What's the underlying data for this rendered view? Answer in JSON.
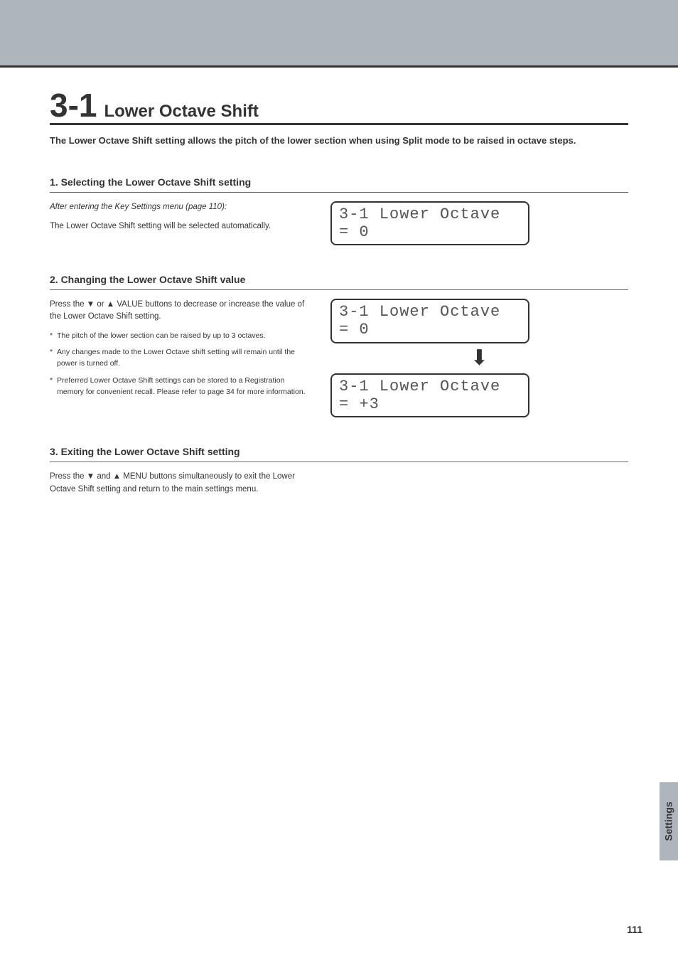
{
  "header": {
    "band_color": "#aeb5bc",
    "rule_color": "#333333"
  },
  "title": {
    "number": "3-1",
    "text": "Lower Octave Shift"
  },
  "intro": "The Lower Octave Shift setting allows the pitch of the lower section when using Split mode to be raised in octave steps.",
  "section1": {
    "heading": "1. Selecting the Lower Octave Shift setting",
    "line1": "After entering the Key Settings menu (page 110):",
    "line2": "The Lower Octave Shift setting will be selected automatically.",
    "lcd": "3-1 Lower Octave\n= 0"
  },
  "section2": {
    "heading": "2. Changing the Lower Octave Shift value",
    "line1": "Press the ▼ or ▲ VALUE buttons to decrease or increase the value of the Lower Octave Shift setting.",
    "note1": "The pitch of the lower section can be raised by up to 3 octaves.",
    "note2": "Any changes made to the Lower Octave shift setting will remain until the power is turned off.",
    "note3": "Preferred Lower Octave Shift settings can be stored to a Registration memory for convenient recall.  Please refer to page 34 for more information.",
    "lcd1": "3-1 Lower Octave\n= 0",
    "arrow": "⬇",
    "lcd2": "3-1 Lower Octave\n= +3"
  },
  "section3": {
    "heading": "3. Exiting the Lower Octave Shift setting",
    "line1": "Press the ▼ and ▲ MENU buttons simultaneously to exit the Lower Octave Shift setting and return to the main settings menu."
  },
  "side_tab": "Settings",
  "page_number": "111",
  "lcd_style": {
    "border_color": "#333333",
    "border_radius": 8,
    "font_family": "Courier New",
    "font_size": 22,
    "text_color": "#555555"
  }
}
